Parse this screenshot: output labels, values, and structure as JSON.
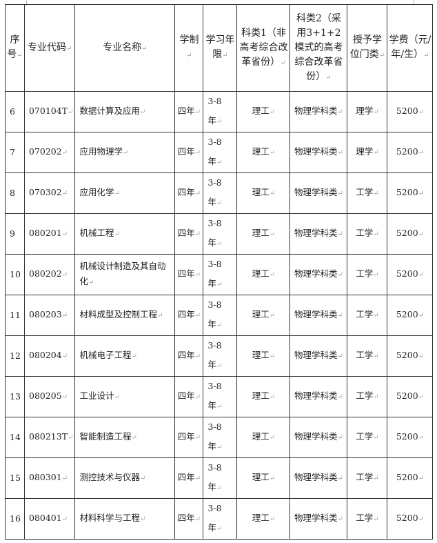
{
  "headers": {
    "seq": "序号",
    "code": "专业代码",
    "name": "专业名称",
    "system": "学制",
    "period": "学习年限",
    "cat1": "科类1（非高考综合改革省份）",
    "cat2": "科类2（采用3+1+2模式的高考综合改革省份）",
    "degree": "授予学位门类",
    "fee": "学费（元/年/生）"
  },
  "rows": [
    {
      "seq": "6",
      "code": "070104T",
      "name": "数据计算及应用",
      "system": "四年",
      "period_a": "3-8",
      "period_b": "年",
      "cat1": "理工",
      "cat2": "物理学科类",
      "degree": "理学",
      "fee": "5200"
    },
    {
      "seq": "7",
      "code": "070202",
      "name": "应用物理学",
      "system": "四年",
      "period_a": "3-8",
      "period_b": "年",
      "cat1": "理工",
      "cat2": "物理学科类",
      "degree": "理学",
      "fee": "5200"
    },
    {
      "seq": "8",
      "code": "070302",
      "name": "应用化学",
      "system": "四年",
      "period_a": "3-8",
      "period_b": "年",
      "cat1": "理工",
      "cat2": "物理学科类",
      "degree": "工学",
      "fee": "5200"
    },
    {
      "seq": "9",
      "code": "080201",
      "name": "机械工程",
      "system": "四年",
      "period_a": "3-8",
      "period_b": "年",
      "cat1": "理工",
      "cat2": "物理学科类",
      "degree": "工学",
      "fee": "5200"
    },
    {
      "seq": "10",
      "code": "080202",
      "name": "机械设计制造及其自动化",
      "system": "四年",
      "period_a": "3-8",
      "period_b": "年",
      "cat1": "理工",
      "cat2": "物理学科类",
      "degree": "工学",
      "fee": "5200"
    },
    {
      "seq": "11",
      "code": "080203",
      "name": "材料成型及控制工程",
      "system": "四年",
      "period_a": "3-8",
      "period_b": "年",
      "cat1": "理工",
      "cat2": "物理学科类",
      "degree": "工学",
      "fee": "5200"
    },
    {
      "seq": "12",
      "code": "080204",
      "name": "机械电子工程",
      "system": "四年",
      "period_a": "3-8",
      "period_b": "年",
      "cat1": "理工",
      "cat2": "物理学科类",
      "degree": "工学",
      "fee": "5200"
    },
    {
      "seq": "13",
      "code": "080205",
      "name": "工业设计",
      "system": "四年",
      "period_a": "3-8",
      "period_b": "年",
      "cat1": "理工",
      "cat2": "物理学科类",
      "degree": "工学",
      "fee": "5200"
    },
    {
      "seq": "14",
      "code": "080213T",
      "name": "智能制造工程",
      "system": "四年",
      "period_a": "3-8",
      "period_b": "年",
      "cat1": "理工",
      "cat2": "物理学科类",
      "degree": "工学",
      "fee": "5200"
    },
    {
      "seq": "15",
      "code": "080301",
      "name": "测控技术与仪器",
      "system": "四年",
      "period_a": "3-8",
      "period_b": "年",
      "cat1": "理工",
      "cat2": "物理学科类",
      "degree": "工学",
      "fee": "5200"
    },
    {
      "seq": "16",
      "code": "080401",
      "name": "材料科学与工程",
      "system": "四年",
      "period_a": "3-8",
      "period_b": "年",
      "cat1": "理工",
      "cat2": "物理学科类",
      "degree": "工学",
      "fee": "5200"
    }
  ]
}
